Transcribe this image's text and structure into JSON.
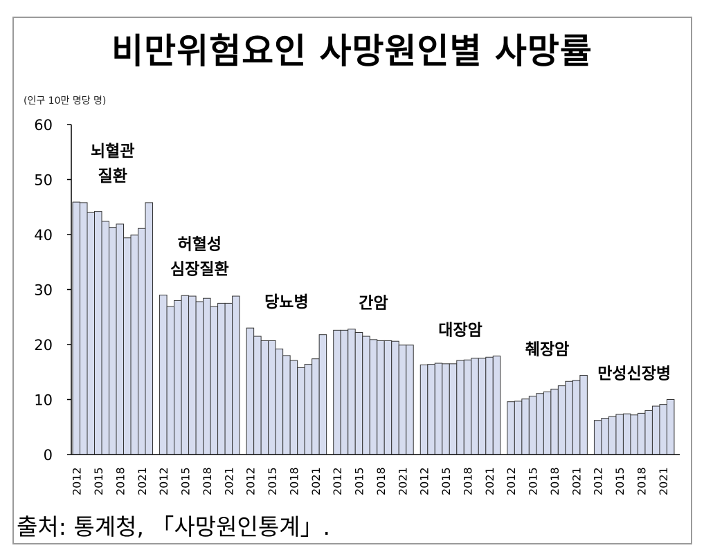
{
  "title": "비만위험요인 사망원인별 사망률",
  "unit_label": "(인구 10만 명당 명)",
  "source": "출처: 통계청, 「사망원인통계」.",
  "chart_data": {
    "type": "bar",
    "title": "비만위험요인 사망원인별 사망률",
    "ylabel": "(인구 10만 명당 명)",
    "xlabel": "",
    "ylim": [
      0,
      60
    ],
    "yticks": [
      0,
      10,
      20,
      30,
      40,
      50,
      60
    ],
    "years": [
      2012,
      2013,
      2014,
      2015,
      2016,
      2017,
      2018,
      2019,
      2020,
      2021,
      2022
    ],
    "xtick_labels": [
      "2012",
      "2015",
      "2018",
      "2021"
    ],
    "bar_color": "#d6dcef",
    "bar_edge": "#333333",
    "groups": [
      {
        "name_lines": [
          "뇌혈관",
          "질환"
        ],
        "values": [
          45.9,
          45.8,
          44.0,
          44.2,
          42.4,
          41.3,
          41.9,
          39.4,
          39.9,
          41.1,
          45.8
        ]
      },
      {
        "name_lines": [
          "허혈성",
          "심장질환"
        ],
        "values": [
          29.0,
          26.9,
          28.0,
          28.9,
          28.8,
          27.8,
          28.4,
          26.9,
          27.5,
          27.5,
          28.8
        ]
      },
      {
        "name_lines": [
          "당뇨병"
        ],
        "values": [
          23.0,
          21.5,
          20.7,
          20.7,
          19.2,
          18.0,
          17.1,
          15.8,
          16.4,
          17.4,
          21.8
        ]
      },
      {
        "name_lines": [
          "간암"
        ],
        "values": [
          22.6,
          22.6,
          22.8,
          22.2,
          21.5,
          20.9,
          20.7,
          20.7,
          20.6,
          19.9,
          19.9
        ]
      },
      {
        "name_lines": [
          "대장암"
        ],
        "values": [
          16.3,
          16.4,
          16.6,
          16.5,
          16.5,
          17.1,
          17.2,
          17.5,
          17.5,
          17.7,
          17.9
        ]
      },
      {
        "name_lines": [
          "췌장암"
        ],
        "values": [
          9.6,
          9.7,
          10.1,
          10.6,
          11.1,
          11.4,
          11.9,
          12.5,
          13.3,
          13.5,
          14.4
        ]
      },
      {
        "name_lines": [
          "만성신장병"
        ],
        "values": [
          6.2,
          6.6,
          6.9,
          7.3,
          7.4,
          7.2,
          7.5,
          8.0,
          8.8,
          9.1,
          10.0
        ]
      }
    ]
  }
}
